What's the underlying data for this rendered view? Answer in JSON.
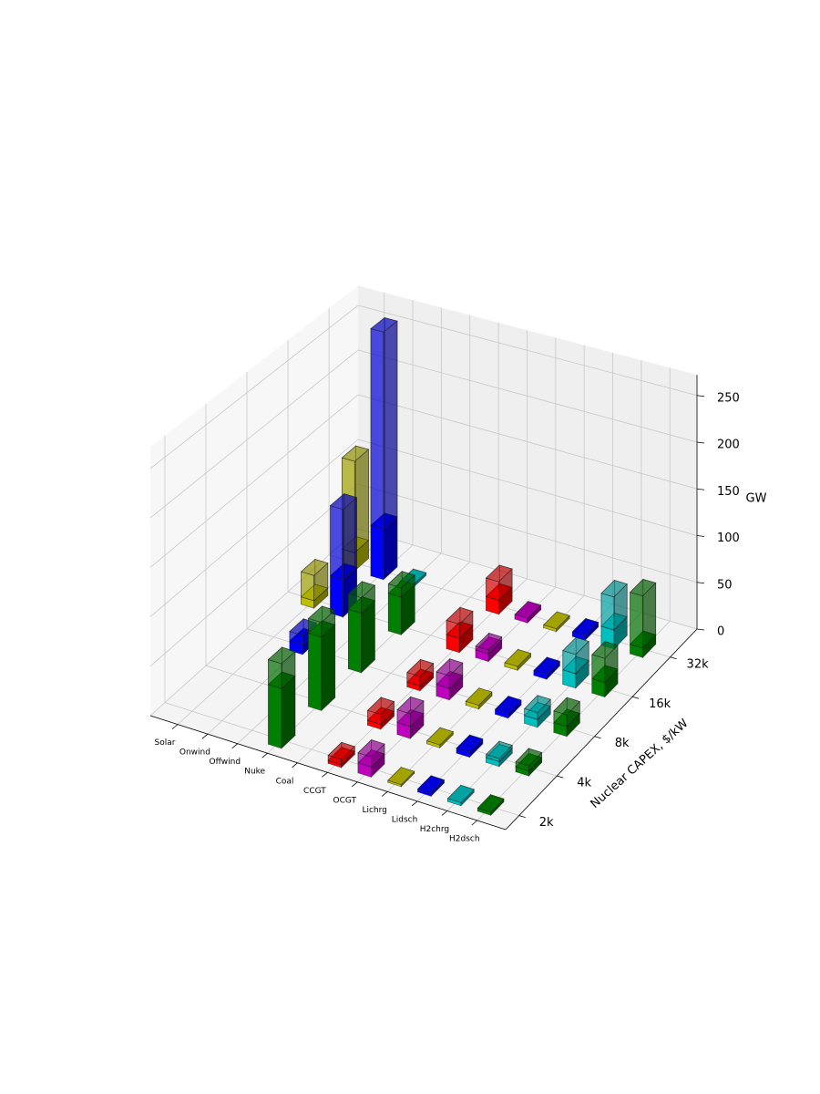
{
  "chart_data": {
    "type": "bar3d",
    "categories": [
      "Solar",
      "Onwind",
      "Offwind",
      "Nuke",
      "Coal",
      "CCGT",
      "OCGT",
      "Lichrg",
      "Lidsch",
      "H2chrg",
      "H2dsch"
    ],
    "colors": [
      "#bfbf00",
      "#0000ff",
      "#00bfbf",
      "#008000",
      "#000000",
      "#ff0000",
      "#bf00bf",
      "#bfbf00",
      "#0000ff",
      "#00bfbf",
      "#008000"
    ],
    "y_categories": [
      "2k",
      "4k",
      "8k",
      "16k",
      "32k"
    ],
    "ylabel": "Nuclear CAPEX, $/kW",
    "zlabel": "GW",
    "zlim": [
      0,
      272
    ],
    "zticks": [
      0,
      50,
      100,
      150,
      200,
      250
    ],
    "grid": true,
    "series": [
      {
        "alpha": 1,
        "values": [
          [
            null,
            null,
            null,
            60,
            null,
            3,
            10,
            2,
            3,
            3,
            3
          ],
          [
            null,
            null,
            null,
            75,
            null,
            5,
            12,
            3,
            5,
            5,
            5
          ],
          [
            null,
            10,
            null,
            62,
            null,
            5,
            12,
            4,
            5,
            8,
            10
          ],
          [
            8,
            40,
            null,
            40,
            null,
            15,
            8,
            4,
            5,
            15,
            15
          ],
          [
            20,
            55,
            3,
            null,
            null,
            15,
            5,
            3,
            5,
            20,
            10
          ]
        ]
      },
      {
        "alpha": 0.45,
        "values": [
          [
            null,
            null,
            null,
            25,
            null,
            5,
            10,
            null,
            null,
            null,
            null
          ],
          [
            null,
            null,
            null,
            15,
            null,
            10,
            13,
            null,
            null,
            3,
            5
          ],
          [
            null,
            10,
            null,
            16,
            null,
            10,
            13,
            null,
            null,
            7,
            12
          ],
          [
            27,
            75,
            null,
            10,
            null,
            15,
            4,
            null,
            null,
            20,
            25
          ],
          [
            100,
            215,
            null,
            null,
            null,
            20,
            null,
            null,
            null,
            35,
            55
          ]
        ]
      }
    ]
  }
}
